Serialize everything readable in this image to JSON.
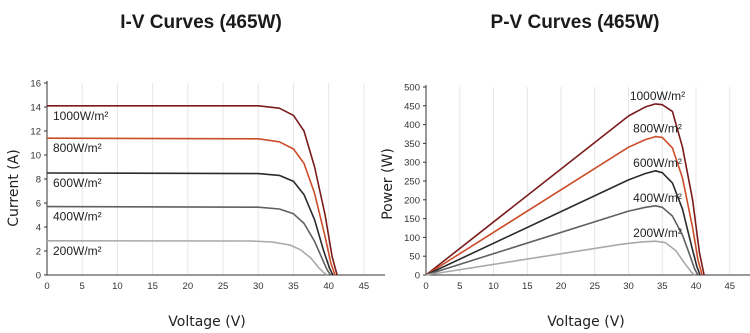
{
  "chart_data": [
    {
      "type": "line",
      "title": "I-V Curves (465W)",
      "xlabel": "Voltage (V)",
      "ylabel": "Current (A)",
      "xlim": [
        0,
        48
      ],
      "ylim": [
        0,
        16
      ],
      "xticks": [
        0,
        5,
        10,
        15,
        20,
        25,
        30,
        35,
        40,
        45
      ],
      "yticks": [
        0,
        2,
        4,
        6,
        8,
        10,
        12,
        14,
        16
      ],
      "grid": "vertical",
      "series": [
        {
          "name": "1000W/m²",
          "color": "#7a1b1b",
          "points": [
            [
              0,
              14.1
            ],
            [
              30,
              14.1
            ],
            [
              33,
              13.9
            ],
            [
              35,
              13.3
            ],
            [
              36.5,
              12.0
            ],
            [
              38,
              9.0
            ],
            [
              39.5,
              5.0
            ],
            [
              40.5,
              1.5
            ],
            [
              41.2,
              0
            ]
          ]
        },
        {
          "name": "800W/m²",
          "color": "#cc4d2a",
          "points": [
            [
              0,
              11.4
            ],
            [
              30,
              11.35
            ],
            [
              33,
              11.1
            ],
            [
              35,
              10.5
            ],
            [
              36.5,
              9.3
            ],
            [
              38,
              6.8
            ],
            [
              39.5,
              3.2
            ],
            [
              40.3,
              1.0
            ],
            [
              40.9,
              0
            ]
          ]
        },
        {
          "name": "600W/m²",
          "color": "#2b2b2b",
          "points": [
            [
              0,
              8.5
            ],
            [
              30,
              8.45
            ],
            [
              33,
              8.3
            ],
            [
              35,
              7.8
            ],
            [
              36.5,
              6.7
            ],
            [
              38,
              4.6
            ],
            [
              39.3,
              2.0
            ],
            [
              40.1,
              0.6
            ],
            [
              40.6,
              0
            ]
          ]
        },
        {
          "name": "400W/m²",
          "color": "#606060",
          "points": [
            [
              0,
              5.7
            ],
            [
              30,
              5.65
            ],
            [
              33,
              5.5
            ],
            [
              35,
              5.1
            ],
            [
              36.5,
              4.3
            ],
            [
              38,
              2.8
            ],
            [
              39.2,
              1.2
            ],
            [
              39.8,
              0.4
            ],
            [
              40.3,
              0
            ]
          ]
        },
        {
          "name": "200W/m²",
          "color": "#a9a9a9",
          "points": [
            [
              0,
              2.85
            ],
            [
              29,
              2.83
            ],
            [
              32,
              2.75
            ],
            [
              34.5,
              2.5
            ],
            [
              36,
              2.1
            ],
            [
              37.5,
              1.4
            ],
            [
              38.6,
              0.6
            ],
            [
              39.3,
              0.2
            ],
            [
              39.8,
              0
            ]
          ]
        }
      ]
    },
    {
      "type": "line",
      "title": "P-V Curves (465W)",
      "xlabel": "Voltage (V)",
      "ylabel": "Power (W)",
      "xlim": [
        0,
        48
      ],
      "ylim": [
        0,
        500
      ],
      "xticks": [
        0,
        5,
        10,
        15,
        20,
        25,
        30,
        35,
        40,
        45
      ],
      "yticks": [
        0,
        50,
        100,
        150,
        200,
        250,
        300,
        350,
        400,
        450,
        500
      ],
      "grid": "vertical",
      "series": [
        {
          "name": "1000W/m²",
          "color": "#7a1b1b",
          "points": [
            [
              0,
              0
            ],
            [
              30,
              423
            ],
            [
              32.5,
              447
            ],
            [
              34,
              455
            ],
            [
              35,
              453
            ],
            [
              36.5,
              435
            ],
            [
              38,
              340
            ],
            [
              39.5,
              200
            ],
            [
              40.5,
              60
            ],
            [
              41.2,
              0
            ]
          ]
        },
        {
          "name": "800W/m²",
          "color": "#cc4d2a",
          "points": [
            [
              0,
              0
            ],
            [
              30,
              340
            ],
            [
              32.5,
              360
            ],
            [
              34,
              368
            ],
            [
              35,
              366
            ],
            [
              36.5,
              338
            ],
            [
              38,
              258
            ],
            [
              39.5,
              126
            ],
            [
              40.3,
              40
            ],
            [
              40.9,
              0
            ]
          ]
        },
        {
          "name": "600W/m²",
          "color": "#2b2b2b",
          "points": [
            [
              0,
              0
            ],
            [
              30,
              253
            ],
            [
              32.5,
              270
            ],
            [
              34,
              277
            ],
            [
              35,
              272
            ],
            [
              36.5,
              245
            ],
            [
              38,
              175
            ],
            [
              39.3,
              80
            ],
            [
              40.1,
              24
            ],
            [
              40.6,
              0
            ]
          ]
        },
        {
          "name": "400W/m²",
          "color": "#606060",
          "points": [
            [
              0,
              0
            ],
            [
              30,
              170
            ],
            [
              32.5,
              180
            ],
            [
              34,
              184
            ],
            [
              35,
              180
            ],
            [
              36.5,
              157
            ],
            [
              38,
              106
            ],
            [
              39.2,
              47
            ],
            [
              39.8,
              16
            ],
            [
              40.3,
              0
            ]
          ]
        },
        {
          "name": "200W/m²",
          "color": "#a9a9a9",
          "points": [
            [
              0,
              0
            ],
            [
              29,
              82
            ],
            [
              32,
              88
            ],
            [
              34,
              90
            ],
            [
              35.5,
              86
            ],
            [
              37,
              65
            ],
            [
              38.3,
              32
            ],
            [
              39.3,
              8
            ],
            [
              39.8,
              0
            ]
          ]
        }
      ]
    }
  ]
}
